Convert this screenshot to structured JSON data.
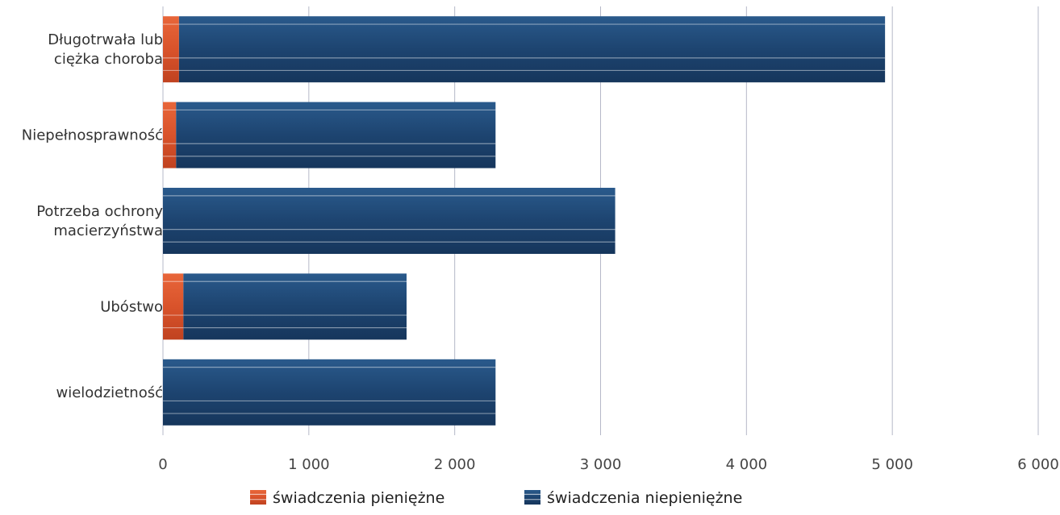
{
  "chart_data": {
    "type": "bar",
    "orientation": "horizontal",
    "stacked": true,
    "categories": [
      [
        "Długotrwała lub",
        "ciężka choroba"
      ],
      [
        "Niepełnosprawność"
      ],
      [
        "Potrzeba ochrony",
        "macierzyństwa"
      ],
      [
        "Ubóstwo"
      ],
      [
        "wielodzietność"
      ]
    ],
    "series": [
      {
        "name": "świadczenia pieniężne",
        "color": "#d9532b",
        "values": [
          110,
          90,
          0,
          140,
          0
        ]
      },
      {
        "name": "świadczenia niepieniężne",
        "color": "#1f4670",
        "values": [
          4840,
          2190,
          3100,
          1530,
          2280
        ]
      }
    ],
    "xlim": [
      0,
      6000
    ],
    "xticks": [
      0,
      1000,
      2000,
      3000,
      4000,
      5000,
      6000
    ],
    "xtick_labels": [
      "0",
      "1 000",
      "2 000",
      "3 000",
      "4 000",
      "5 000",
      "6 000"
    ],
    "grid": "vertical",
    "legend_position": "bottom"
  }
}
